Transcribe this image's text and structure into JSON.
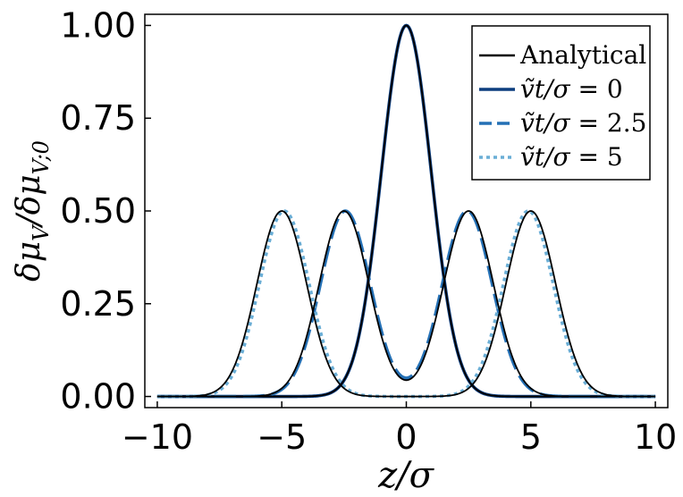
{
  "chart_data": {
    "type": "line",
    "xlabel": "z/σ",
    "ylabel": "δμ_V/δμ_{V;0}",
    "xlim": [
      -10.5,
      10.5
    ],
    "ylim": [
      -0.03,
      1.03
    ],
    "x_ticks": [
      -10,
      -5,
      0,
      5,
      10
    ],
    "x_tick_labels": [
      "−10",
      "−5",
      "0",
      "5",
      "10"
    ],
    "y_ticks": [
      0,
      0.25,
      0.5,
      0.75,
      1.0
    ],
    "y_tick_labels": [
      "0.00",
      "0.25",
      "0.50",
      "0.75",
      "1.00"
    ],
    "grid": false,
    "legend_position": "top-right",
    "x_samples": {
      "start": -10,
      "end": 10,
      "step": 0.05
    },
    "series": [
      {
        "name": "Analytical",
        "color": "#000000",
        "dash": "solid",
        "curves": [
          {
            "peaks": [
              {
                "center": 0,
                "amplitude": 1.0,
                "sigma": 1.0
              }
            ]
          },
          {
            "peaks": [
              {
                "center": -2.5,
                "amplitude": 0.5,
                "sigma": 1.0
              },
              {
                "center": 2.5,
                "amplitude": 0.5,
                "sigma": 1.0
              }
            ]
          },
          {
            "peaks": [
              {
                "center": -5,
                "amplitude": 0.5,
                "sigma": 1.0
              },
              {
                "center": 5,
                "amplitude": 0.5,
                "sigma": 1.0
              }
            ]
          }
        ]
      },
      {
        "name": "ṽt/σ = 0",
        "label_parts": {
          "lhs": "ṽt/σ",
          "rhs": "0"
        },
        "color": "#0d3e7f",
        "dash": "solid",
        "curves": [
          {
            "peaks": [
              {
                "center": 0,
                "amplitude": 1.0,
                "sigma": 1.0
              }
            ]
          }
        ]
      },
      {
        "name": "ṽt/σ = 2.5",
        "label_parts": {
          "lhs": "ṽt/σ",
          "rhs": "2.5"
        },
        "color": "#2470b5",
        "dash": "dashed",
        "curves": [
          {
            "peaks": [
              {
                "center": -2.45,
                "amplitude": 0.5,
                "sigma": 1.0
              },
              {
                "center": 2.45,
                "amplitude": 0.5,
                "sigma": 1.0
              }
            ]
          }
        ]
      },
      {
        "name": "ṽt/σ = 5",
        "label_parts": {
          "lhs": "ṽt/σ",
          "rhs": "5"
        },
        "color": "#6aaed6",
        "dash": "dotted",
        "curves": [
          {
            "peaks": [
              {
                "center": -4.9,
                "amplitude": 0.5,
                "sigma": 1.0
              },
              {
                "center": 4.9,
                "amplitude": 0.5,
                "sigma": 1.0
              }
            ]
          }
        ]
      }
    ]
  }
}
